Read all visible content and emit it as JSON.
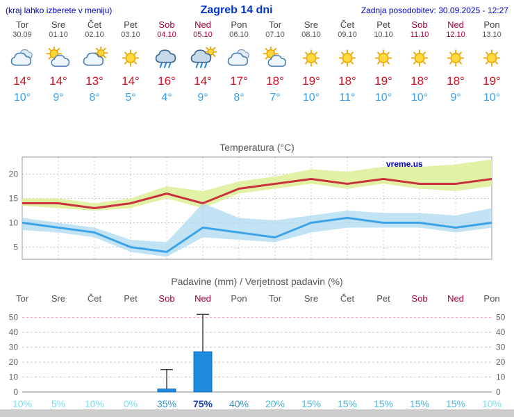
{
  "header": {
    "hint": "(kraj lahko izberete v meniju)",
    "title": "Zagreb 14 dni",
    "updated": "Zadnja posodobitev: 30.09.2025 - 12:27"
  },
  "colors": {
    "link_blue": "#0000cc",
    "title_blue": "#0033cc",
    "weekday_gray": "#444444",
    "weekend_red": "#aa0033",
    "tmax_red": "#cc1122",
    "tmin_blue": "#3aa0ee",
    "bar_blue": "#1f8ce0",
    "watermark_blue": "#0000bb",
    "footer_gray": "#cccccc"
  },
  "days": [
    {
      "name": "Tor",
      "date": "30.09",
      "weekend": false,
      "icon": "cloudy",
      "tmax": 14,
      "tmin": 10
    },
    {
      "name": "Sre",
      "date": "01.10",
      "weekend": false,
      "icon": "partly-cloudy",
      "tmax": 14,
      "tmin": 9
    },
    {
      "name": "Čet",
      "date": "02.10",
      "weekend": false,
      "icon": "mostly-cloudy",
      "tmax": 13,
      "tmin": 8
    },
    {
      "name": "Pet",
      "date": "03.10",
      "weekend": false,
      "icon": "sunny",
      "tmax": 14,
      "tmin": 5
    },
    {
      "name": "Sob",
      "date": "04.10",
      "weekend": true,
      "icon": "rain",
      "tmax": 16,
      "tmin": 4
    },
    {
      "name": "Ned",
      "date": "05.10",
      "weekend": true,
      "icon": "rain-sun",
      "tmax": 14,
      "tmin": 9
    },
    {
      "name": "Pon",
      "date": "06.10",
      "weekend": false,
      "icon": "cloudy",
      "tmax": 17,
      "tmin": 8
    },
    {
      "name": "Tor",
      "date": "07.10",
      "weekend": false,
      "icon": "partly-cloudy",
      "tmax": 18,
      "tmin": 7
    },
    {
      "name": "Sre",
      "date": "08.10",
      "weekend": false,
      "icon": "sunny",
      "tmax": 19,
      "tmin": 10
    },
    {
      "name": "Čet",
      "date": "09.10",
      "weekend": false,
      "icon": "sunny",
      "tmax": 18,
      "tmin": 11
    },
    {
      "name": "Pet",
      "date": "10.10",
      "weekend": false,
      "icon": "sunny",
      "tmax": 19,
      "tmin": 10
    },
    {
      "name": "Sob",
      "date": "11.10",
      "weekend": true,
      "icon": "sunny",
      "tmax": 18,
      "tmin": 10
    },
    {
      "name": "Ned",
      "date": "12.10",
      "weekend": true,
      "icon": "sunny",
      "tmax": 18,
      "tmin": 9
    },
    {
      "name": "Pon",
      "date": "13.10",
      "weekend": false,
      "icon": "sunny",
      "tmax": 19,
      "tmin": 10
    }
  ],
  "chart_data": [
    {
      "type": "line",
      "title": "Temperatura (°C)",
      "categories": [
        "Tor",
        "Sre",
        "Čet",
        "Pet",
        "Sob",
        "Ned",
        "Pon",
        "Tor",
        "Sre",
        "Čet",
        "Pet",
        "Sob",
        "Ned",
        "Pon"
      ],
      "ylim": [
        2.5,
        23.5
      ],
      "yticks": [
        5,
        10,
        15,
        20
      ],
      "grid": true,
      "watermark": "vreme.us",
      "series": [
        {
          "name": "tmax",
          "color": "#c93340",
          "band_color": "#dff0a0",
          "values": [
            14,
            14,
            13,
            14,
            16,
            14,
            17,
            18,
            19,
            18,
            19,
            18,
            18,
            19
          ],
          "band_hi": [
            15,
            15,
            14,
            15,
            17.5,
            16.5,
            18.5,
            19.5,
            21,
            20.5,
            21.5,
            21.5,
            22,
            23
          ],
          "band_lo": [
            13.5,
            13,
            12.5,
            13,
            15,
            13,
            16,
            17,
            18,
            17,
            18,
            17,
            16.5,
            17.5
          ]
        },
        {
          "name": "tmin",
          "color": "#3da3e8",
          "band_color": "#add9f0",
          "values": [
            10,
            9,
            8,
            5,
            4,
            9,
            8,
            7,
            10,
            11,
            10,
            10,
            9,
            10
          ],
          "band_hi": [
            11,
            10,
            9,
            6.5,
            6,
            14,
            11,
            10.5,
            11.5,
            12.5,
            12,
            12,
            11.5,
            13
          ],
          "band_lo": [
            8.5,
            8,
            7,
            4,
            3,
            7,
            6.5,
            6,
            8,
            9,
            9,
            9,
            8,
            9
          ]
        }
      ]
    },
    {
      "type": "bar",
      "title": "Padavine (mm) / Verjetnost padavin (%)",
      "categories": [
        "Tor",
        "Sre",
        "Čet",
        "Pet",
        "Sob",
        "Ned",
        "Pon",
        "Tor",
        "Sre",
        "Čet",
        "Pet",
        "Sob",
        "Ned",
        "Pon"
      ],
      "ylim": [
        0,
        55
      ],
      "yticks": [
        0,
        10,
        20,
        30,
        40,
        50
      ],
      "bar_color": "#1f8ce0",
      "values": [
        0,
        0,
        0,
        0,
        2,
        27,
        0,
        0,
        0,
        0,
        0,
        0,
        0,
        0
      ],
      "whisker_hi": [
        0,
        0,
        0,
        0,
        15,
        52,
        0,
        0,
        0,
        0,
        0,
        0,
        0,
        0
      ],
      "probabilities": [
        {
          "text": "10%",
          "color": "#7adcee",
          "bold": false
        },
        {
          "text": "5%",
          "color": "#7adcee",
          "bold": false
        },
        {
          "text": "10%",
          "color": "#7adcee",
          "bold": false
        },
        {
          "text": "0%",
          "color": "#7adcee",
          "bold": false
        },
        {
          "text": "35%",
          "color": "#3391c8",
          "bold": false
        },
        {
          "text": "75%",
          "color": "#1b3fae",
          "bold": true
        },
        {
          "text": "40%",
          "color": "#3391c8",
          "bold": false
        },
        {
          "text": "20%",
          "color": "#4cb6dc",
          "bold": false
        },
        {
          "text": "15%",
          "color": "#4cb6dc",
          "bold": false
        },
        {
          "text": "15%",
          "color": "#4cb6dc",
          "bold": false
        },
        {
          "text": "15%",
          "color": "#4cb6dc",
          "bold": false
        },
        {
          "text": "15%",
          "color": "#4cb6dc",
          "bold": false
        },
        {
          "text": "15%",
          "color": "#4cb6dc",
          "bold": false
        },
        {
          "text": "10%",
          "color": "#7adcee",
          "bold": false
        }
      ]
    }
  ]
}
